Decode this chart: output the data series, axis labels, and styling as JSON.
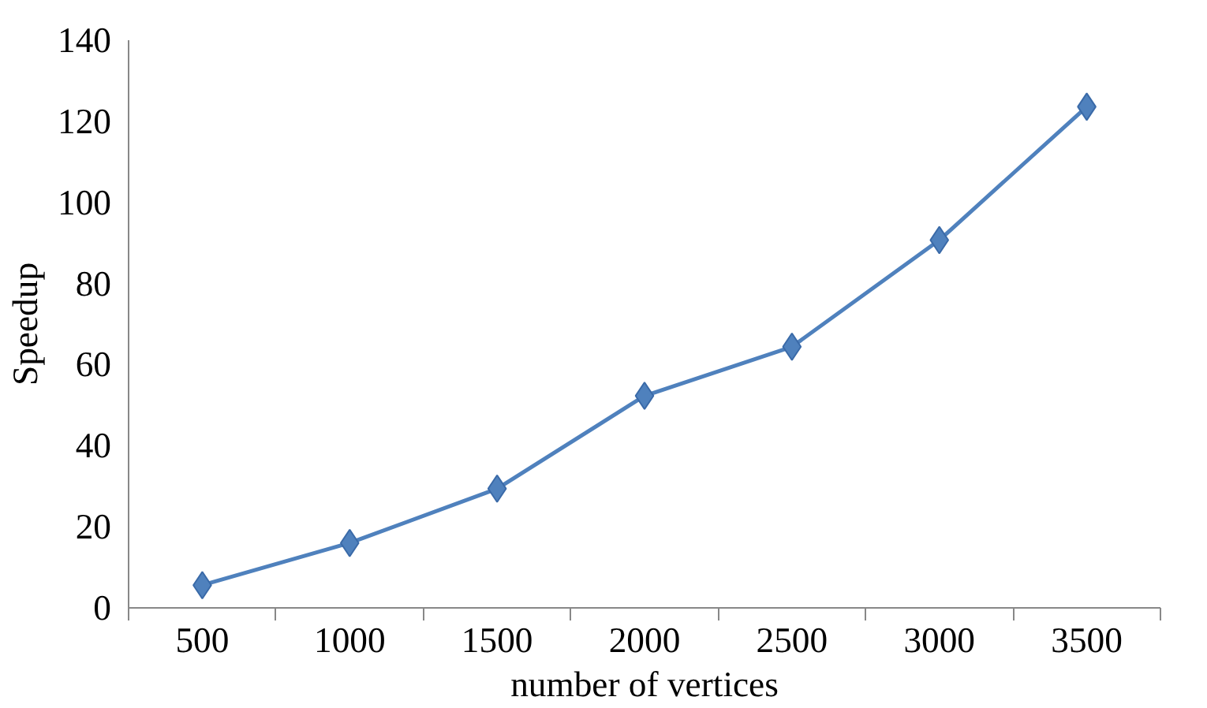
{
  "chart_data": {
    "type": "line",
    "xlabel": "number of vertices",
    "ylabel": "Speedup",
    "categories": [
      "500",
      "1000",
      "1500",
      "2000",
      "2500",
      "3000",
      "3500"
    ],
    "series": [
      {
        "color": "#4f81bd",
        "values": [
          5.6,
          16,
          29.4,
          52.3,
          64.4,
          90.7,
          123.6
        ]
      }
    ],
    "ylim": [
      0,
      140
    ],
    "yticks": [
      0,
      20,
      40,
      60,
      80,
      100,
      120,
      140
    ],
    "marker": "diamond",
    "line_style": "solid",
    "grid": false
  }
}
